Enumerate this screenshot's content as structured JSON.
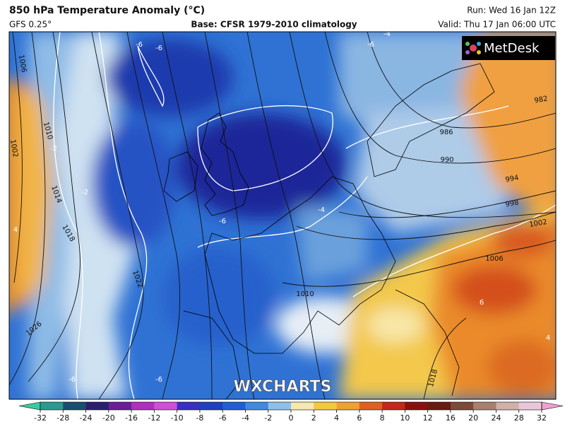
{
  "header": {
    "title": "850 hPa Temperature Anomaly (°C)",
    "model": "GFS 0.25°",
    "base": "Base: CFSR 1979-2010 climatology",
    "run": "Run: Wed 16 Jan 12Z",
    "valid": "Valid: Thu 17 Jan 06:00 UTC"
  },
  "logo": "MetDesk",
  "watermark": "WXCHARTS",
  "map": {
    "isobar_labels": [
      1006,
      1010,
      1014,
      1018,
      1022,
      1026,
      1002,
      986,
      990,
      994,
      998,
      1002,
      1006,
      1010,
      982,
      1018
    ],
    "anomaly_labels": [
      -6,
      -6,
      -2,
      -2,
      -4,
      -6,
      -6,
      -6,
      -4,
      4,
      6,
      4,
      -6
    ]
  },
  "colorbar": {
    "ticks": [
      -32,
      -28,
      -24,
      -20,
      -16,
      -12,
      -10,
      -8,
      -6,
      -4,
      -2,
      0,
      2,
      4,
      6,
      8,
      10,
      12,
      16,
      20,
      24,
      28,
      32
    ],
    "colors": [
      "#3cc8a0",
      "#2a9a90",
      "#1b4e6e",
      "#2a1f6e",
      "#6a1f9a",
      "#b02fc0",
      "#d24ed8",
      "#3a2fc0",
      "#1f3fbf",
      "#1e5fd6",
      "#3f8ae0",
      "#8ec0ea",
      "#f6e9b0",
      "#f5c842",
      "#f0a030",
      "#e06020",
      "#c02818",
      "#8a1010",
      "#6a1a10",
      "#7a4a3a",
      "#a88070",
      "#d0b0a8",
      "#e8c8d8",
      "#f0a0d0"
    ]
  }
}
